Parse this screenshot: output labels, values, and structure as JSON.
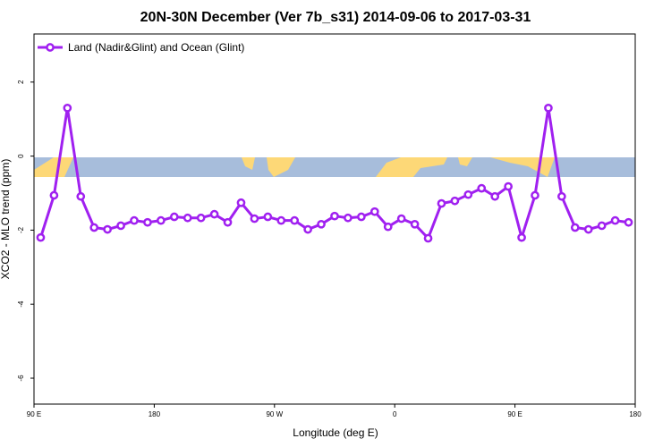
{
  "chart_data": {
    "type": "line",
    "title": "20N-30N December (Ver 7b_s31)   2014-09-06 to 2017-03-31",
    "x_label": "Longitude (deg E)",
    "y_label": "XCO2 - MLO trend (ppm)",
    "x": [
      95,
      105,
      115,
      125,
      135,
      145,
      155,
      165,
      175,
      185,
      195,
      205,
      215,
      225,
      235,
      245,
      255,
      265,
      275,
      285,
      295,
      305,
      315,
      325,
      335,
      345,
      355,
      365,
      375,
      385,
      395,
      405,
      415,
      425,
      435,
      445,
      455,
      465,
      475,
      485,
      495,
      505,
      515,
      525,
      535
    ],
    "series": [
      {
        "name": "Land (Nadir&Glint) and Ocean (Glint)",
        "color": "#a020f0",
        "values": [
          -2.2,
          -1.06,
          1.3,
          -1.09,
          -1.93,
          -1.98,
          -1.88,
          -1.74,
          -1.79,
          -1.74,
          -1.64,
          -1.67,
          -1.67,
          -1.57,
          -1.79,
          -1.26,
          -1.69,
          -1.64,
          -1.74,
          -1.74,
          -1.98,
          -1.84,
          -1.62,
          -1.67,
          -1.64,
          -1.5,
          -1.91,
          -1.69,
          -1.84,
          -2.22,
          -1.28,
          -1.21,
          -1.04,
          -0.87,
          -1.09,
          -0.82,
          -2.2,
          -1.06,
          1.3,
          -1.09,
          -1.93,
          -1.98,
          -1.88,
          -1.74,
          -1.79
        ]
      }
    ],
    "xlim": [
      90,
      540
    ],
    "xticks": [
      {
        "value": 90,
        "label": "90 E"
      },
      {
        "value": 180,
        "label": "180"
      },
      {
        "value": 270,
        "label": "90 W"
      },
      {
        "value": 360,
        "label": "0"
      },
      {
        "value": 450,
        "label": "90 E"
      },
      {
        "value": 540,
        "label": "180"
      }
    ],
    "ylim": [
      -6.7,
      3.3
    ],
    "yticks": [
      2,
      0,
      -2,
      -4,
      -6
    ],
    "legend": "top-left"
  }
}
